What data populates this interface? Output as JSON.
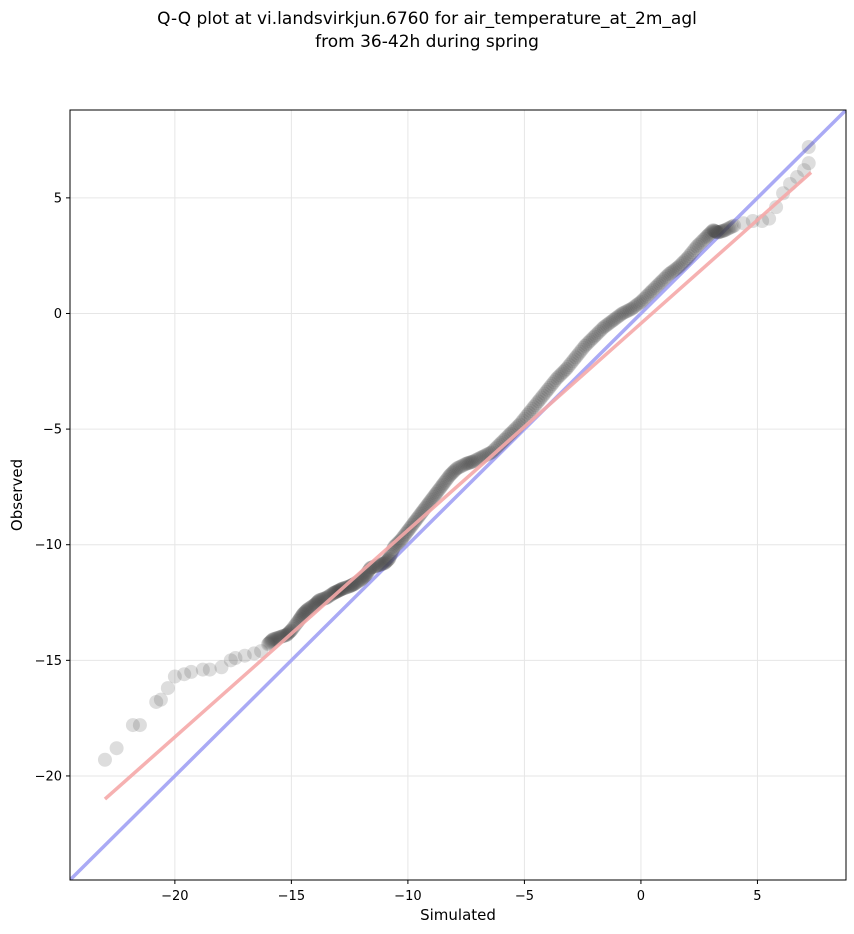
{
  "chart_data": {
    "type": "scatter",
    "title_lines": [
      "Q-Q plot at vi.landsvirkjun.6760 for air_temperature_at_2m_agl",
      "from 36-42h during spring"
    ],
    "xlabel": "Simulated",
    "ylabel": "Observed",
    "xlim": [
      -24.5,
      8.8
    ],
    "ylim": [
      -24.5,
      8.8
    ],
    "xticks": [
      -20,
      -15,
      -10,
      -5,
      0,
      5
    ],
    "yticks": [
      -20,
      -15,
      -10,
      -5,
      0,
      5
    ],
    "xtick_labels": [
      "−20",
      "−15",
      "−10",
      "−5",
      "0",
      "5"
    ],
    "ytick_labels": [
      "−20",
      "−15",
      "−10",
      "−5",
      "0",
      "5"
    ],
    "grid": true,
    "quantile_points": {
      "x": [
        -23.0,
        -22.5,
        -21.8,
        -21.5,
        -20.8,
        -20.6,
        -20.3,
        -20.0,
        -19.6,
        -19.3,
        -18.8,
        -18.5,
        -18.0,
        -17.6,
        -17.4,
        -17.0,
        -16.6,
        -16.3,
        -16.0,
        -15.8,
        -15.5,
        -15.2,
        -15.0,
        -14.7,
        -14.5,
        -14.3,
        -14.0,
        -13.8,
        -13.5,
        -13.2,
        -13.0,
        -12.8,
        -12.5,
        -12.3,
        -12.0,
        -11.8,
        -11.6,
        -11.3,
        -11.0,
        -10.8,
        -10.6,
        -10.3,
        -10.0,
        -9.7,
        -9.4,
        -9.1,
        -8.8,
        -8.5,
        -8.2,
        -7.9,
        -7.5,
        -7.2,
        -6.8,
        -6.4,
        -6.0,
        -5.6,
        -5.2,
        -4.8,
        -4.4,
        -4.0,
        -3.6,
        -3.2,
        -2.8,
        -2.4,
        -2.0,
        -1.6,
        -1.2,
        -0.8,
        -0.4,
        0.0,
        0.4,
        0.8,
        1.2,
        1.6,
        2.0,
        2.4,
        2.8,
        3.1,
        3.3,
        3.6,
        4.0,
        4.4,
        4.8,
        5.2,
        5.5,
        5.8,
        6.1,
        6.4,
        6.7,
        7.0,
        7.2,
        7.2
      ],
      "y": [
        -19.3,
        -18.8,
        -17.8,
        -17.8,
        -16.8,
        -16.7,
        -16.2,
        -15.7,
        -15.6,
        -15.5,
        -15.4,
        -15.4,
        -15.3,
        -15.0,
        -14.9,
        -14.8,
        -14.7,
        -14.6,
        -14.3,
        -14.1,
        -14.0,
        -13.9,
        -13.7,
        -13.3,
        -13.0,
        -12.8,
        -12.6,
        -12.4,
        -12.3,
        -12.1,
        -12.0,
        -11.9,
        -11.8,
        -11.7,
        -11.5,
        -11.3,
        -11.0,
        -10.9,
        -10.8,
        -10.6,
        -10.1,
        -9.8,
        -9.4,
        -9.0,
        -8.6,
        -8.2,
        -7.8,
        -7.4,
        -7.0,
        -6.7,
        -6.5,
        -6.4,
        -6.2,
        -6.0,
        -5.6,
        -5.2,
        -4.8,
        -4.3,
        -3.8,
        -3.3,
        -2.8,
        -2.4,
        -1.9,
        -1.4,
        -1.0,
        -0.6,
        -0.3,
        0.0,
        0.2,
        0.5,
        0.9,
        1.3,
        1.7,
        2.0,
        2.4,
        2.9,
        3.3,
        3.6,
        3.5,
        3.6,
        3.8,
        3.9,
        4.0,
        4.0,
        4.1,
        4.6,
        5.2,
        5.6,
        5.9,
        6.2,
        6.5,
        7.2
      ]
    },
    "reference_line": {
      "name": "1:1",
      "color": "#aaaaf5",
      "from": [
        -24.5,
        -24.5
      ],
      "to": [
        8.8,
        8.8
      ]
    },
    "fit_line": {
      "name": "fit",
      "color": "#f5a8a8",
      "from": [
        -23.0,
        -21.0
      ],
      "to": [
        7.3,
        6.1
      ]
    },
    "point_color": "#444444"
  }
}
